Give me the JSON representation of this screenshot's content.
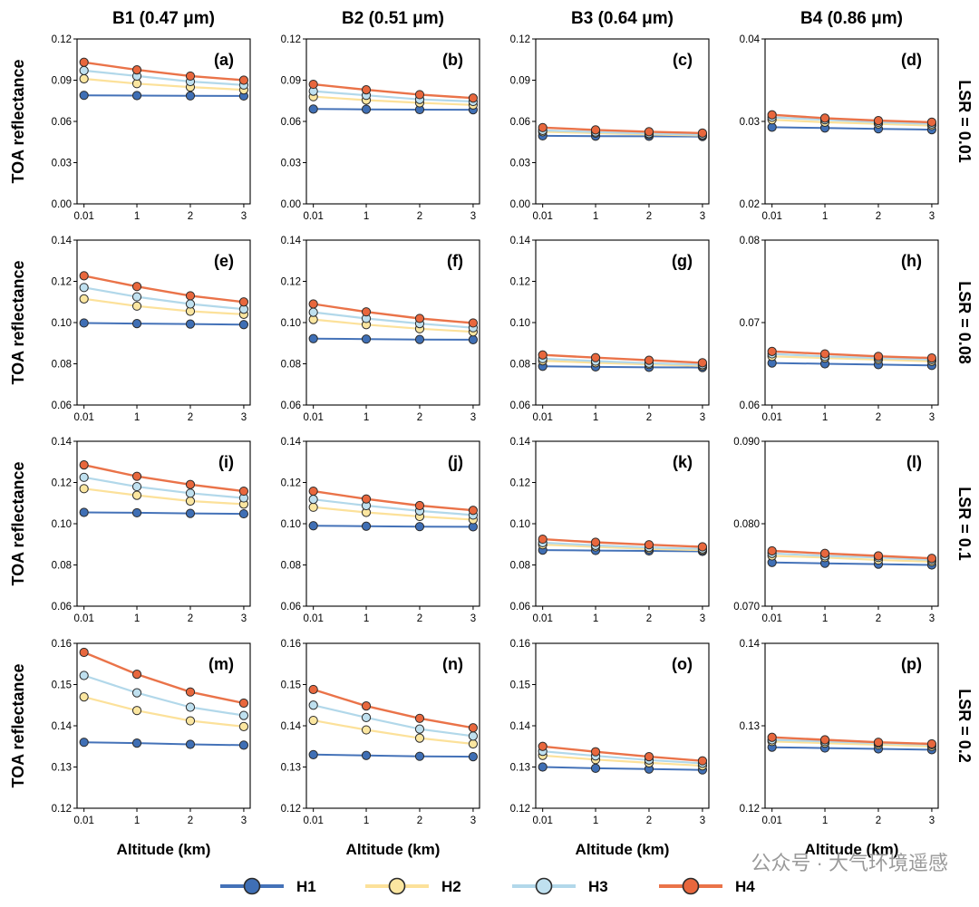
{
  "figure": {
    "column_titles": [
      "B1 (0.47 μm)",
      "B2 (0.51 μm)",
      "B3 (0.64 μm)",
      "B4 (0.86 μm)"
    ],
    "row_titles": [
      "LSR = 0.01",
      "LSR = 0.08",
      "LSR = 0.1",
      "LSR = 0.2"
    ],
    "ylabel": "TOA reflectance",
    "xlabel": "Altitude (km)",
    "watermark": "公众号 · 大气环境遥感"
  },
  "colors": {
    "H1_line": "#4472b8",
    "H1_fill": "#3f6fb5",
    "H2_line": "#fce19a",
    "H2_fill": "#fbe6a0",
    "H3_line": "#b2d8ea",
    "H3_fill": "#bfe0ef",
    "H4_line": "#ea7349",
    "H4_fill": "#e8673d",
    "marker_edge": "#2b2b2b"
  },
  "legend": [
    {
      "key": "H1",
      "label": "H1"
    },
    {
      "key": "H2",
      "label": "H2"
    },
    {
      "key": "H3",
      "label": "H3"
    },
    {
      "key": "H4",
      "label": "H4"
    }
  ],
  "chart_data": [
    {
      "type": "line",
      "label": "(a)",
      "x": [
        0.01,
        1,
        2,
        3
      ],
      "xticks": [
        "0.01",
        "1",
        "2",
        "3"
      ],
      "ylim": [
        0,
        0.12
      ],
      "yticks": [
        "0.00",
        "0.03",
        "0.06",
        "0.09",
        "0.12"
      ],
      "series": [
        {
          "name": "H1",
          "values": [
            0.079,
            0.0788,
            0.0786,
            0.0785
          ]
        },
        {
          "name": "H2",
          "values": [
            0.091,
            0.0875,
            0.085,
            0.083
          ]
        },
        {
          "name": "H3",
          "values": [
            0.097,
            0.093,
            0.089,
            0.0865
          ]
        },
        {
          "name": "H4",
          "values": [
            0.103,
            0.0975,
            0.093,
            0.09
          ]
        }
      ]
    },
    {
      "type": "line",
      "label": "(b)",
      "x": [
        0.01,
        1,
        2,
        3
      ],
      "xticks": [
        "0.01",
        "1",
        "2",
        "3"
      ],
      "ylim": [
        0,
        0.12
      ],
      "yticks": [
        "0.00",
        "0.03",
        "0.06",
        "0.09",
        "0.12"
      ],
      "series": [
        {
          "name": "H1",
          "values": [
            0.069,
            0.0688,
            0.0686,
            0.0685
          ]
        },
        {
          "name": "H2",
          "values": [
            0.078,
            0.0755,
            0.0735,
            0.072
          ]
        },
        {
          "name": "H3",
          "values": [
            0.082,
            0.079,
            0.076,
            0.0745
          ]
        },
        {
          "name": "H4",
          "values": [
            0.087,
            0.083,
            0.0795,
            0.077
          ]
        }
      ]
    },
    {
      "type": "line",
      "label": "(c)",
      "x": [
        0.01,
        1,
        2,
        3
      ],
      "xticks": [
        "0.01",
        "1",
        "2",
        "3"
      ],
      "ylim": [
        0,
        0.12
      ],
      "yticks": [
        "0.00",
        "0.03",
        "0.06",
        "0.09",
        "0.12"
      ],
      "series": [
        {
          "name": "H1",
          "values": [
            0.0495,
            0.0493,
            0.0492,
            0.049
          ]
        },
        {
          "name": "H2",
          "values": [
            0.0525,
            0.0515,
            0.0505,
            0.0498
          ]
        },
        {
          "name": "H3",
          "values": [
            0.0535,
            0.0523,
            0.0512,
            0.0503
          ]
        },
        {
          "name": "H4",
          "values": [
            0.0555,
            0.0538,
            0.0525,
            0.0515
          ]
        }
      ]
    },
    {
      "type": "line",
      "label": "(d)",
      "x": [
        0.01,
        1,
        2,
        3
      ],
      "xticks": [
        "0.01",
        "1",
        "2",
        "3"
      ],
      "ylim": [
        0.02,
        0.04
      ],
      "yticks": [
        "0.02",
        "0.03",
        "0.04"
      ],
      "series": [
        {
          "name": "H1",
          "values": [
            0.0293,
            0.0292,
            0.0291,
            0.029
          ]
        },
        {
          "name": "H2",
          "values": [
            0.0302,
            0.0299,
            0.0297,
            0.0295
          ]
        },
        {
          "name": "H3",
          "values": [
            0.0305,
            0.0302,
            0.0299,
            0.0297
          ]
        },
        {
          "name": "H4",
          "values": [
            0.0308,
            0.0304,
            0.0301,
            0.0299
          ]
        }
      ]
    },
    {
      "type": "line",
      "label": "(e)",
      "x": [
        0.01,
        1,
        2,
        3
      ],
      "xticks": [
        "0.01",
        "1",
        "2",
        "3"
      ],
      "ylim": [
        0.06,
        0.14
      ],
      "yticks": [
        "0.06",
        "0.08",
        "0.10",
        "0.12",
        "0.14"
      ],
      "series": [
        {
          "name": "H1",
          "values": [
            0.0998,
            0.0995,
            0.0993,
            0.099
          ]
        },
        {
          "name": "H2",
          "values": [
            0.1115,
            0.108,
            0.1055,
            0.104
          ]
        },
        {
          "name": "H3",
          "values": [
            0.117,
            0.1125,
            0.109,
            0.1065
          ]
        },
        {
          "name": "H4",
          "values": [
            0.1227,
            0.1175,
            0.113,
            0.11
          ]
        }
      ]
    },
    {
      "type": "line",
      "label": "(f)",
      "x": [
        0.01,
        1,
        2,
        3
      ],
      "xticks": [
        "0.01",
        "1",
        "2",
        "3"
      ],
      "ylim": [
        0.06,
        0.14
      ],
      "yticks": [
        "0.06",
        "0.08",
        "0.10",
        "0.12",
        "0.14"
      ],
      "series": [
        {
          "name": "H1",
          "values": [
            0.0922,
            0.092,
            0.0918,
            0.0917
          ]
        },
        {
          "name": "H2",
          "values": [
            0.1015,
            0.099,
            0.097,
            0.0955
          ]
        },
        {
          "name": "H3",
          "values": [
            0.105,
            0.102,
            0.0995,
            0.0975
          ]
        },
        {
          "name": "H4",
          "values": [
            0.109,
            0.1052,
            0.102,
            0.0998
          ]
        }
      ]
    },
    {
      "type": "line",
      "label": "(g)",
      "x": [
        0.01,
        1,
        2,
        3
      ],
      "xticks": [
        "0.01",
        "1",
        "2",
        "3"
      ],
      "ylim": [
        0.06,
        0.14
      ],
      "yticks": [
        "0.06",
        "0.08",
        "0.10",
        "0.12",
        "0.14"
      ],
      "series": [
        {
          "name": "H1",
          "values": [
            0.0788,
            0.0785,
            0.0783,
            0.0782
          ]
        },
        {
          "name": "H2",
          "values": [
            0.0815,
            0.0805,
            0.0797,
            0.079
          ]
        },
        {
          "name": "H3",
          "values": [
            0.0825,
            0.0813,
            0.0803,
            0.0796
          ]
        },
        {
          "name": "H4",
          "values": [
            0.0843,
            0.083,
            0.0817,
            0.0805
          ]
        }
      ]
    },
    {
      "type": "line",
      "label": "(h)",
      "x": [
        0.01,
        1,
        2,
        3
      ],
      "xticks": [
        "0.01",
        "1",
        "2",
        "3"
      ],
      "ylim": [
        0.06,
        0.08
      ],
      "yticks": [
        "0.06",
        "0.07",
        "0.08"
      ],
      "series": [
        {
          "name": "H1",
          "values": [
            0.0651,
            0.065,
            0.0649,
            0.0648
          ]
        },
        {
          "name": "H2",
          "values": [
            0.0659,
            0.0657,
            0.0655,
            0.0653
          ]
        },
        {
          "name": "H3",
          "values": [
            0.0662,
            0.0659,
            0.0657,
            0.0655
          ]
        },
        {
          "name": "H4",
          "values": [
            0.0665,
            0.0662,
            0.0659,
            0.0657
          ]
        }
      ]
    },
    {
      "type": "line",
      "label": "(i)",
      "x": [
        0.01,
        1,
        2,
        3
      ],
      "xticks": [
        "0.01",
        "1",
        "2",
        "3"
      ],
      "ylim": [
        0.06,
        0.14
      ],
      "yticks": [
        "0.06",
        "0.08",
        "0.10",
        "0.12",
        "0.14"
      ],
      "series": [
        {
          "name": "H1",
          "values": [
            0.1055,
            0.1053,
            0.105,
            0.1048
          ]
        },
        {
          "name": "H2",
          "values": [
            0.117,
            0.1138,
            0.111,
            0.1095
          ]
        },
        {
          "name": "H3",
          "values": [
            0.1225,
            0.118,
            0.1148,
            0.1125
          ]
        },
        {
          "name": "H4",
          "values": [
            0.1285,
            0.123,
            0.119,
            0.1158
          ]
        }
      ]
    },
    {
      "type": "line",
      "label": "(j)",
      "x": [
        0.01,
        1,
        2,
        3
      ],
      "xticks": [
        "0.01",
        "1",
        "2",
        "3"
      ],
      "ylim": [
        0.06,
        0.14
      ],
      "yticks": [
        "0.06",
        "0.08",
        "0.10",
        "0.12",
        "0.14"
      ],
      "series": [
        {
          "name": "H1",
          "values": [
            0.099,
            0.0988,
            0.0986,
            0.0985
          ]
        },
        {
          "name": "H2",
          "values": [
            0.108,
            0.1055,
            0.1035,
            0.102
          ]
        },
        {
          "name": "H3",
          "values": [
            0.1118,
            0.1088,
            0.1062,
            0.1042
          ]
        },
        {
          "name": "H4",
          "values": [
            0.1158,
            0.112,
            0.1088,
            0.1065
          ]
        }
      ]
    },
    {
      "type": "line",
      "label": "(k)",
      "x": [
        0.01,
        1,
        2,
        3
      ],
      "xticks": [
        "0.01",
        "1",
        "2",
        "3"
      ],
      "ylim": [
        0.06,
        0.14
      ],
      "yticks": [
        "0.06",
        "0.08",
        "0.10",
        "0.12",
        "0.14"
      ],
      "series": [
        {
          "name": "H1",
          "values": [
            0.0872,
            0.087,
            0.0868,
            0.0866
          ]
        },
        {
          "name": "H2",
          "values": [
            0.0898,
            0.0888,
            0.0878,
            0.0872
          ]
        },
        {
          "name": "H3",
          "values": [
            0.0908,
            0.0895,
            0.0885,
            0.0878
          ]
        },
        {
          "name": "H4",
          "values": [
            0.0925,
            0.091,
            0.0898,
            0.0888
          ]
        }
      ]
    },
    {
      "type": "line",
      "label": "(l)",
      "x": [
        0.01,
        1,
        2,
        3
      ],
      "xticks": [
        "0.01",
        "1",
        "2",
        "3"
      ],
      "ylim": [
        0.07,
        0.09
      ],
      "yticks": [
        "0.070",
        "0.080",
        "0.090"
      ],
      "series": [
        {
          "name": "H1",
          "values": [
            0.0753,
            0.0752,
            0.0751,
            0.075
          ]
        },
        {
          "name": "H2",
          "values": [
            0.0761,
            0.0759,
            0.0756,
            0.0754
          ]
        },
        {
          "name": "H3",
          "values": [
            0.0764,
            0.0761,
            0.0759,
            0.0756
          ]
        },
        {
          "name": "H4",
          "values": [
            0.0767,
            0.0764,
            0.0761,
            0.0758
          ]
        }
      ]
    },
    {
      "type": "line",
      "label": "(m)",
      "x": [
        0.01,
        1,
        2,
        3
      ],
      "xticks": [
        "0.01",
        "1",
        "2",
        "3"
      ],
      "ylim": [
        0.12,
        0.16
      ],
      "yticks": [
        "0.12",
        "0.13",
        "0.14",
        "0.15",
        "0.16"
      ],
      "series": [
        {
          "name": "H1",
          "values": [
            0.136,
            0.1358,
            0.1355,
            0.1353
          ]
        },
        {
          "name": "H2",
          "values": [
            0.147,
            0.1437,
            0.1412,
            0.1398
          ]
        },
        {
          "name": "H3",
          "values": [
            0.1522,
            0.148,
            0.1445,
            0.1425
          ]
        },
        {
          "name": "H4",
          "values": [
            0.1578,
            0.1525,
            0.1482,
            0.1455
          ]
        }
      ]
    },
    {
      "type": "line",
      "label": "(n)",
      "x": [
        0.01,
        1,
        2,
        3
      ],
      "xticks": [
        "0.01",
        "1",
        "2",
        "3"
      ],
      "ylim": [
        0.12,
        0.16
      ],
      "yticks": [
        "0.12",
        "0.13",
        "0.14",
        "0.15",
        "0.16"
      ],
      "series": [
        {
          "name": "H1",
          "values": [
            0.133,
            0.1328,
            0.1326,
            0.1325
          ]
        },
        {
          "name": "H2",
          "values": [
            0.1413,
            0.139,
            0.137,
            0.1356
          ]
        },
        {
          "name": "H3",
          "values": [
            0.145,
            0.142,
            0.1392,
            0.1375
          ]
        },
        {
          "name": "H4",
          "values": [
            0.1488,
            0.1448,
            0.1418,
            0.1395
          ]
        }
      ]
    },
    {
      "type": "line",
      "label": "(o)",
      "x": [
        0.01,
        1,
        2,
        3
      ],
      "xticks": [
        "0.01",
        "1",
        "2",
        "3"
      ],
      "ylim": [
        0.12,
        0.16
      ],
      "yticks": [
        "0.12",
        "0.13",
        "0.14",
        "0.15",
        "0.16"
      ],
      "series": [
        {
          "name": "H1",
          "values": [
            0.13,
            0.1297,
            0.1295,
            0.1293
          ]
        },
        {
          "name": "H2",
          "values": [
            0.1328,
            0.1318,
            0.131,
            0.1303
          ]
        },
        {
          "name": "H3",
          "values": [
            0.1338,
            0.1327,
            0.1317,
            0.1309
          ]
        },
        {
          "name": "H4",
          "values": [
            0.135,
            0.1337,
            0.1325,
            0.1315
          ]
        }
      ]
    },
    {
      "type": "line",
      "label": "(p)",
      "x": [
        0.01,
        1,
        2,
        3
      ],
      "xticks": [
        "0.01",
        "1",
        "2",
        "3"
      ],
      "ylim": [
        0.12,
        0.14
      ],
      "yticks": [
        "0.12",
        "0.13",
        "0.14"
      ],
      "series": [
        {
          "name": "H1",
          "values": [
            0.1274,
            0.1273,
            0.1272,
            0.1271
          ]
        },
        {
          "name": "H2",
          "values": [
            0.1281,
            0.1279,
            0.1277,
            0.1275
          ]
        },
        {
          "name": "H3",
          "values": [
            0.1283,
            0.1281,
            0.1279,
            0.1277
          ]
        },
        {
          "name": "H4",
          "values": [
            0.1286,
            0.1283,
            0.128,
            0.1278
          ]
        }
      ]
    }
  ]
}
